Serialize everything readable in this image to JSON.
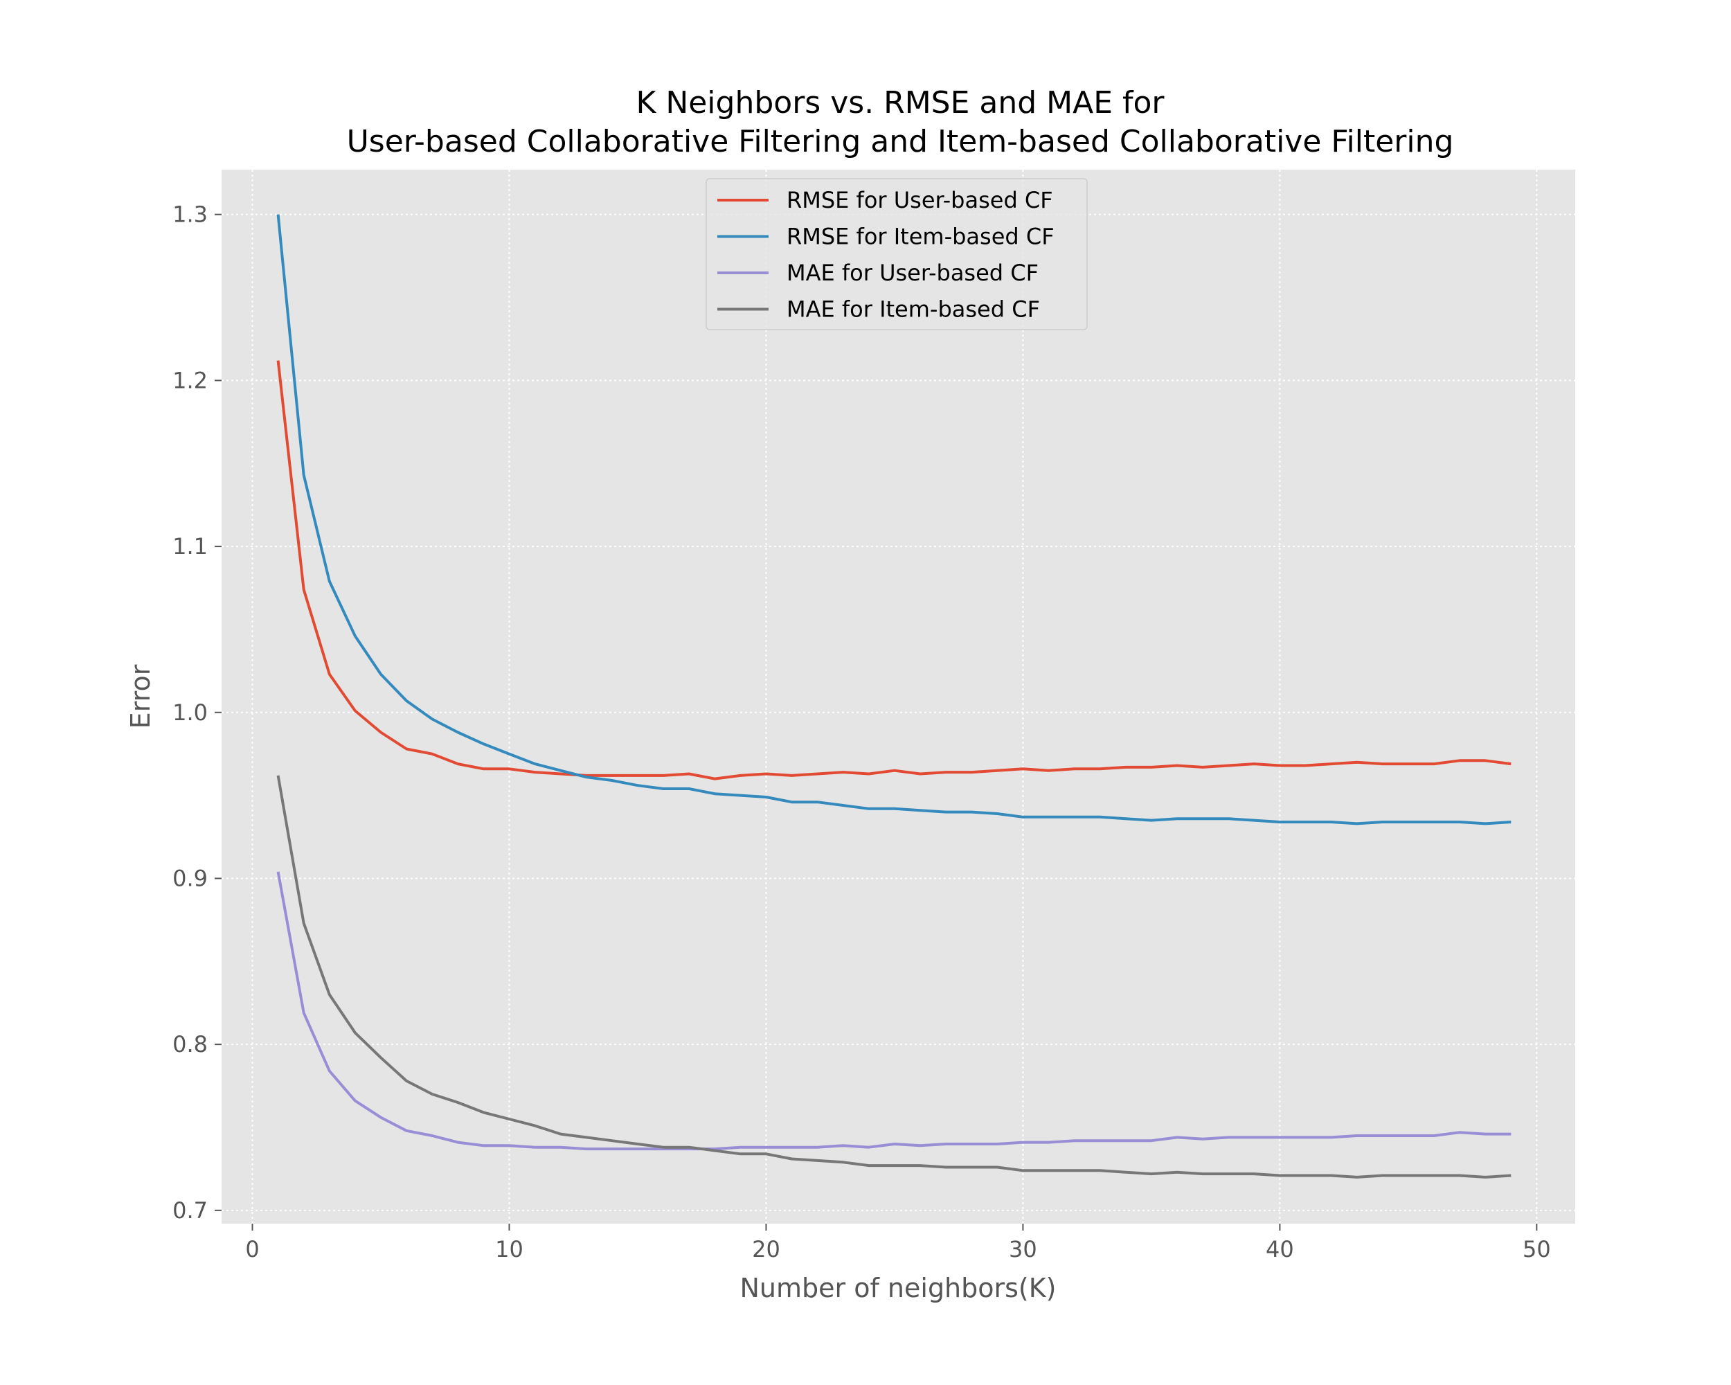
{
  "chart_data": {
    "type": "line",
    "title": [
      "K Neighbors vs. RMSE and MAE for",
      "User-based Collaborative Filtering and Item-based Collaborative Filtering"
    ],
    "xlabel": "Number of neighbors(K)",
    "ylabel": "Error",
    "xlim": [
      -1.2,
      51.5
    ],
    "ylim": [
      0.692,
      1.327
    ],
    "xticks": [
      0,
      10,
      20,
      30,
      40,
      50
    ],
    "xtick_labels": [
      "0",
      "10",
      "20",
      "30",
      "40",
      "50"
    ],
    "yticks": [
      0.7,
      0.8,
      0.9,
      1.0,
      1.1,
      1.2,
      1.3
    ],
    "ytick_labels": [
      "0.7",
      "0.8",
      "0.9",
      "1.0",
      "1.1",
      "1.2",
      "1.3"
    ],
    "grid": true,
    "legend_position": "upper-center",
    "x": [
      1,
      2,
      3,
      4,
      5,
      6,
      7,
      8,
      9,
      10,
      11,
      12,
      13,
      14,
      15,
      16,
      17,
      18,
      19,
      20,
      21,
      22,
      23,
      24,
      25,
      26,
      27,
      28,
      29,
      30,
      31,
      32,
      33,
      34,
      35,
      36,
      37,
      38,
      39,
      40,
      41,
      42,
      43,
      44,
      45,
      46,
      47,
      48,
      49
    ],
    "series": [
      {
        "name": "RMSE for User-based CF",
        "color": "#E24A33",
        "values": [
          1.212,
          1.074,
          1.023,
          1.001,
          0.988,
          0.978,
          0.975,
          0.969,
          0.966,
          0.966,
          0.964,
          0.963,
          0.962,
          0.962,
          0.962,
          0.962,
          0.963,
          0.96,
          0.962,
          0.963,
          0.962,
          0.963,
          0.964,
          0.963,
          0.965,
          0.963,
          0.964,
          0.964,
          0.965,
          0.966,
          0.965,
          0.966,
          0.966,
          0.967,
          0.967,
          0.968,
          0.967,
          0.968,
          0.969,
          0.968,
          0.968,
          0.969,
          0.97,
          0.969,
          0.969,
          0.969,
          0.971,
          0.971,
          0.969
        ]
      },
      {
        "name": "RMSE for Item-based CF",
        "color": "#348ABD",
        "values": [
          1.3,
          1.143,
          1.079,
          1.046,
          1.023,
          1.007,
          0.996,
          0.988,
          0.981,
          0.975,
          0.969,
          0.965,
          0.961,
          0.959,
          0.956,
          0.954,
          0.954,
          0.951,
          0.95,
          0.949,
          0.946,
          0.946,
          0.944,
          0.942,
          0.942,
          0.941,
          0.94,
          0.94,
          0.939,
          0.937,
          0.937,
          0.937,
          0.937,
          0.936,
          0.935,
          0.936,
          0.936,
          0.936,
          0.935,
          0.934,
          0.934,
          0.934,
          0.933,
          0.934,
          0.934,
          0.934,
          0.934,
          0.933,
          0.934
        ]
      },
      {
        "name": "MAE for User-based CF",
        "color": "#988ED5",
        "values": [
          0.904,
          0.819,
          0.784,
          0.766,
          0.756,
          0.748,
          0.745,
          0.741,
          0.739,
          0.739,
          0.738,
          0.738,
          0.737,
          0.737,
          0.737,
          0.737,
          0.737,
          0.737,
          0.738,
          0.738,
          0.738,
          0.738,
          0.739,
          0.738,
          0.74,
          0.739,
          0.74,
          0.74,
          0.74,
          0.741,
          0.741,
          0.742,
          0.742,
          0.742,
          0.742,
          0.744,
          0.743,
          0.744,
          0.744,
          0.744,
          0.744,
          0.744,
          0.745,
          0.745,
          0.745,
          0.745,
          0.747,
          0.746,
          0.746
        ]
      },
      {
        "name": "MAE for Item-based CF",
        "color": "#777777",
        "values": [
          0.962,
          0.873,
          0.83,
          0.807,
          0.792,
          0.778,
          0.77,
          0.765,
          0.759,
          0.755,
          0.751,
          0.746,
          0.744,
          0.742,
          0.74,
          0.738,
          0.738,
          0.736,
          0.734,
          0.734,
          0.731,
          0.73,
          0.729,
          0.727,
          0.727,
          0.727,
          0.726,
          0.726,
          0.726,
          0.724,
          0.724,
          0.724,
          0.724,
          0.723,
          0.722,
          0.723,
          0.722,
          0.722,
          0.722,
          0.721,
          0.721,
          0.721,
          0.72,
          0.721,
          0.721,
          0.721,
          0.721,
          0.72,
          0.721
        ]
      }
    ]
  }
}
